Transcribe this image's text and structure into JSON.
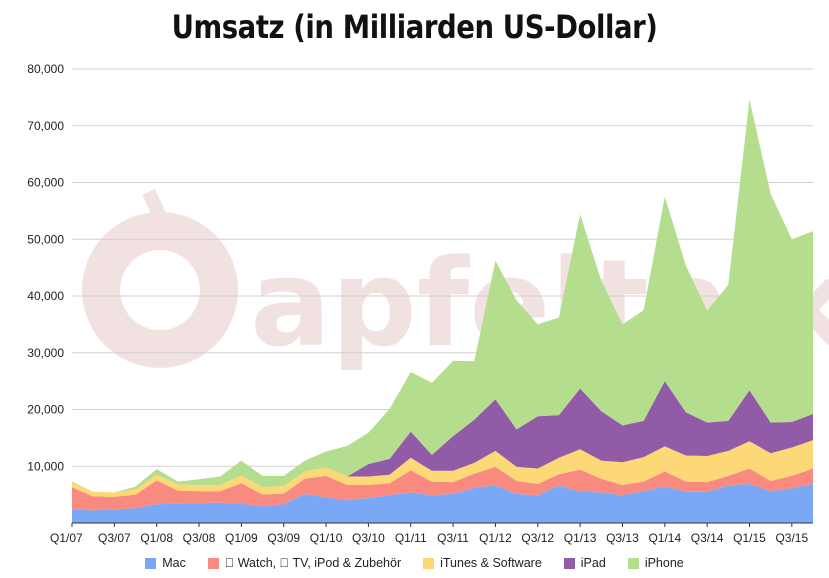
{
  "chart_data": {
    "type": "area",
    "stacked": true,
    "title": "Umsatz (in Milliarden US-Dollar)",
    "xlabel": "",
    "ylabel": "",
    "ylim": [
      0,
      80000
    ],
    "yticks": [
      "80,000",
      "70,000",
      "60,000",
      "50,000",
      "40,000",
      "30,000",
      "20,000",
      "10,000"
    ],
    "ytick_values": [
      80000,
      70000,
      60000,
      50000,
      40000,
      30000,
      20000,
      10000
    ],
    "xtick_labels": [
      "Q1/07",
      "Q3/07",
      "Q1/08",
      "Q3/08",
      "Q1/09",
      "Q3/09",
      "Q1/10",
      "Q3/10",
      "Q1/11",
      "Q3/11",
      "Q1/12",
      "Q3/12",
      "Q1/13",
      "Q3/13",
      "Q1/14",
      "Q3/14",
      "Q1/15",
      "Q3/15"
    ],
    "x": [
      "Q1/07",
      "Q2/07",
      "Q3/07",
      "Q4/07",
      "Q1/08",
      "Q2/08",
      "Q3/08",
      "Q4/08",
      "Q1/09",
      "Q2/09",
      "Q3/09",
      "Q4/09",
      "Q1/10",
      "Q2/10",
      "Q3/10",
      "Q4/10",
      "Q1/11",
      "Q2/11",
      "Q3/11",
      "Q4/11",
      "Q1/12",
      "Q2/12",
      "Q3/12",
      "Q4/12",
      "Q1/13",
      "Q2/13",
      "Q3/13",
      "Q4/13",
      "Q1/14",
      "Q2/14",
      "Q3/14",
      "Q4/14",
      "Q1/15",
      "Q2/15",
      "Q3/15",
      "Q4/15"
    ],
    "grid": true,
    "legend_position": "bottom",
    "series": [
      {
        "name": "Mac",
        "color": "#7ba7f7",
        "values": [
          2400,
          2200,
          2400,
          2600,
          3300,
          3400,
          3500,
          3600,
          3400,
          2900,
          3300,
          5100,
          4500,
          4000,
          4400,
          4900,
          5400,
          4900,
          5100,
          6200,
          6600,
          5100,
          4900,
          6600,
          5500,
          5400,
          4900,
          5600,
          6400,
          5500,
          5500,
          6600,
          6900,
          5600,
          6100,
          6900
        ]
      },
      {
        "name": " Watch,  TV, iPod & Zubehör",
        "color": "#f98a80",
        "values": [
          3900,
          2500,
          2200,
          2400,
          4200,
          2300,
          2100,
          2000,
          3600,
          2100,
          1900,
          2700,
          3800,
          2700,
          2300,
          2100,
          3900,
          2400,
          2100,
          2500,
          3300,
          2300,
          2000,
          2000,
          3900,
          2400,
          1800,
          1700,
          2700,
          1800,
          1700,
          1700,
          2700,
          1800,
          2200,
          2700
        ]
      },
      {
        "name": "iTunes & Software",
        "color": "#fcd877",
        "values": [
          800,
          800,
          800,
          900,
          1000,
          1100,
          1100,
          1100,
          1400,
          1300,
          1300,
          1300,
          1500,
          1500,
          1500,
          1500,
          2200,
          1900,
          2000,
          1900,
          2800,
          2500,
          2700,
          2900,
          3600,
          3200,
          4000,
          4300,
          4400,
          4600,
          4600,
          4400,
          4800,
          4900,
          5000,
          5000
        ]
      },
      {
        "name": "iPad",
        "color": "#925ba8",
        "values": [
          0,
          0,
          0,
          0,
          0,
          0,
          0,
          0,
          0,
          0,
          0,
          0,
          0,
          0,
          2200,
          2800,
          4600,
          2800,
          6100,
          7600,
          9100,
          6600,
          9200,
          7500,
          10700,
          8700,
          6500,
          6400,
          11500,
          7600,
          5900,
          5300,
          9000,
          5400,
          4500,
          4600
        ]
      },
      {
        "name": "iPhone",
        "color": "#b4dd8e",
        "values": [
          200,
          0,
          0,
          500,
          1000,
          500,
          1000,
          1500,
          2600,
          2000,
          1800,
          1900,
          2800,
          5400,
          5500,
          8800,
          10500,
          12700,
          13300,
          10300,
          24400,
          22700,
          16200,
          17200,
          30700,
          23000,
          17800,
          19500,
          32500,
          25800,
          19700,
          24000,
          51200,
          40300,
          32200,
          32200
        ]
      }
    ]
  }
}
